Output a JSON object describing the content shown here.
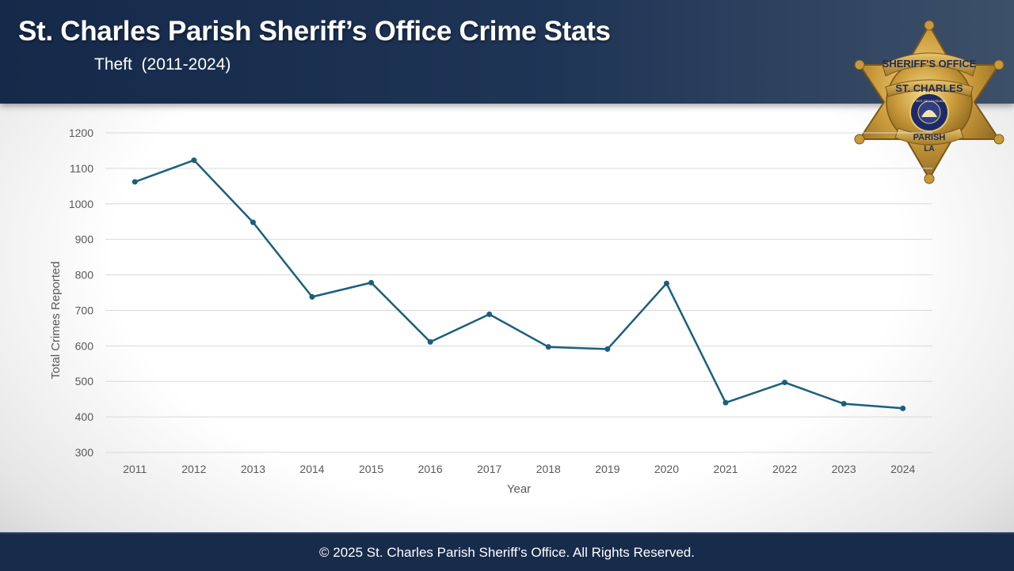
{
  "header": {
    "title": "St. Charles Parish Sheriff’s Office Crime Stats",
    "subtitle": "Theft  (2011-2024)"
  },
  "badge": {
    "top_text": "SHERIFF'S OFFICE",
    "name_text": "ST. CHARLES",
    "bottom_text": "PARISH",
    "state_text": "LA",
    "seal_text": "STATE OF LOUISIANA",
    "icon": "sheriff-star-badge-icon"
  },
  "footer": {
    "copyright": "© 2025 St. Charles Parish Sheriff’s Office. All Rights Reserved."
  },
  "chart_data": {
    "type": "line",
    "xlabel": "Year",
    "ylabel": "Total Crimes Reported",
    "ylim": [
      300,
      1200
    ],
    "yticks": [
      300,
      400,
      500,
      600,
      700,
      800,
      900,
      1000,
      1100,
      1200
    ],
    "grid": true,
    "legend": "none",
    "categories": [
      "2011",
      "2012",
      "2013",
      "2014",
      "2015",
      "2016",
      "2017",
      "2018",
      "2019",
      "2020",
      "2021",
      "2022",
      "2023",
      "2024"
    ],
    "series": [
      {
        "values": [
          1062,
          1123,
          948,
          738,
          778,
          611,
          689,
          597,
          591,
          776,
          440,
          497,
          437,
          424
        ],
        "color": "#1b5e7e"
      }
    ]
  }
}
